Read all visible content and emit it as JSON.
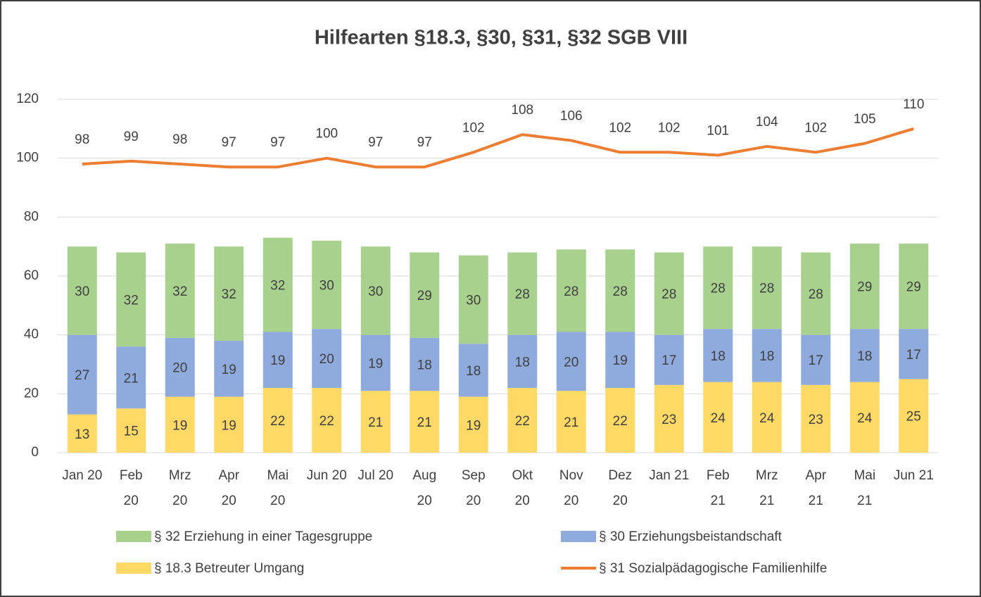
{
  "chart_data": {
    "type": "bar",
    "title": "Hilfearten §18.3, §30, §31, §32 SGB VIII",
    "categories": [
      "Jan 20",
      "Feb 20",
      "Mrz 20",
      "Apr 20",
      "Mai 20",
      "Jun 20",
      "Jul 20",
      "Aug 20",
      "Sep 20",
      "Okt 20",
      "Nov 20",
      "Dez 20",
      "Jan 21",
      "Feb 21",
      "Mrz 21",
      "Apr 21",
      "Mai 21",
      "Jun 21"
    ],
    "series": [
      {
        "name": "§ 18.3 Betreuter Umgang",
        "type": "bar",
        "color": "#ffd966",
        "values": [
          13,
          15,
          19,
          19,
          22,
          22,
          21,
          21,
          19,
          22,
          21,
          22,
          23,
          24,
          24,
          23,
          24,
          25
        ]
      },
      {
        "name": "§ 30 Erziehungsbeistandschaft",
        "type": "bar",
        "color": "#8faadc",
        "values": [
          27,
          21,
          20,
          19,
          19,
          20,
          19,
          18,
          18,
          18,
          20,
          19,
          17,
          18,
          18,
          17,
          18,
          17
        ]
      },
      {
        "name": "§ 32 Erziehung in einer Tagesgruppe",
        "type": "bar",
        "color": "#a9d18e",
        "values": [
          30,
          32,
          32,
          32,
          32,
          30,
          30,
          29,
          30,
          28,
          28,
          28,
          28,
          28,
          28,
          28,
          29,
          29
        ]
      },
      {
        "name": "§ 31 Sozialpädagogische Familienhilfe",
        "type": "line",
        "color": "#ed7d31",
        "values": [
          98,
          99,
          98,
          97,
          97,
          100,
          97,
          97,
          102,
          108,
          106,
          102,
          102,
          101,
          104,
          102,
          105,
          110
        ]
      }
    ],
    "stacked": true,
    "ylim": [
      0,
      120
    ],
    "yticks": [
      0,
      20,
      40,
      60,
      80,
      100,
      120
    ],
    "grid": true
  }
}
